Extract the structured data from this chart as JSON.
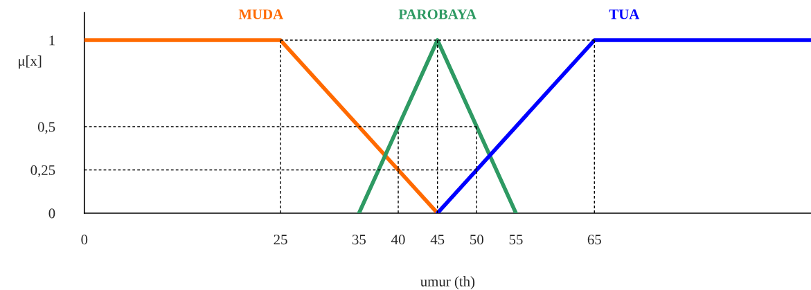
{
  "chart_data": {
    "type": "line",
    "xlabel": "umur (th)",
    "ylabel": "μ[x]",
    "xlim": [
      0,
      92.6
    ],
    "ylim": [
      0,
      1.16
    ],
    "xticks": [
      0,
      25,
      35,
      40,
      45,
      50,
      55,
      65
    ],
    "yticks": [
      0,
      {
        "value": 0.25,
        "label": "0,25"
      },
      {
        "value": 0.5,
        "label": "0,5"
      },
      1
    ],
    "grid": false,
    "legend": false,
    "marker": "none",
    "series": [
      {
        "name": "MUDA",
        "color": "#ff6a00",
        "x": [
          0,
          25,
          45
        ],
        "values": [
          1,
          1,
          0
        ]
      },
      {
        "name": "PAROBAYA",
        "color": "#2e9a63",
        "x": [
          35,
          45,
          55
        ],
        "values": [
          0,
          1,
          0
        ]
      },
      {
        "name": "TUA",
        "color": "#0000ff",
        "x": [
          45,
          65,
          92.6
        ],
        "values": [
          0,
          1,
          1
        ]
      },
      {
        "color": "#000000",
        "line_style": "dashed",
        "x": [
          25,
          65
        ],
        "values": [
          1,
          1
        ]
      },
      {
        "color": "#000000",
        "line_style": "dashed",
        "x": [
          25,
          25
        ],
        "values": [
          0,
          1
        ]
      },
      {
        "color": "#000000",
        "line_style": "dashed",
        "x": [
          45,
          45
        ],
        "values": [
          0,
          1
        ]
      },
      {
        "color": "#000000",
        "line_style": "dashed",
        "x": [
          65,
          65
        ],
        "values": [
          0,
          1
        ]
      },
      {
        "color": "#000000",
        "line_style": "dashed",
        "x": [
          0,
          50
        ],
        "values": [
          0.5,
          0.5
        ]
      },
      {
        "color": "#000000",
        "line_style": "dashed",
        "x": [
          0,
          50
        ],
        "values": [
          0.25,
          0.25
        ]
      },
      {
        "color": "#000000",
        "line_style": "dashed",
        "x": [
          40,
          40
        ],
        "values": [
          0,
          0.5
        ]
      },
      {
        "color": "#000000",
        "line_style": "dashed",
        "x": [
          50,
          50
        ],
        "values": [
          0,
          0.5
        ]
      }
    ]
  }
}
